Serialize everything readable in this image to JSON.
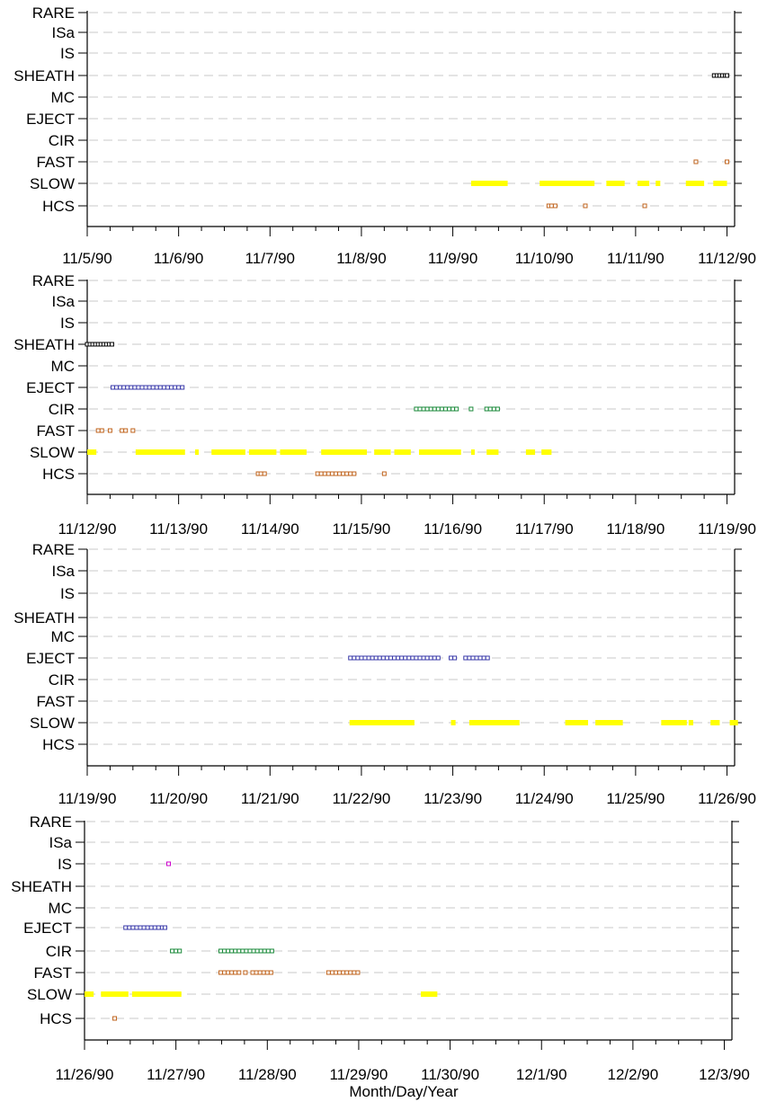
{
  "figure": {
    "xlabel": "Month/Day/Year",
    "categories": [
      "RARE",
      "ISa",
      "IS",
      "SHEATH",
      "MC",
      "EJECT",
      "CIR",
      "FAST",
      "SLOW",
      "HCS"
    ],
    "colors": {
      "SHEATH": "#000000",
      "EJECT": "#3a3aaa",
      "CIR": "#1a8a3a",
      "FAST": "#c0641e",
      "HCS": "#c0641e",
      "SLOW": "#ffff00",
      "IS": "#cc00cc",
      "grid": "#c8c8c8"
    }
  },
  "chart_data": [
    {
      "type": "scatter",
      "title": "",
      "xlabel": "",
      "ylabel": "",
      "xlim": [
        "1990-11-05",
        "1990-11-12 02:00"
      ],
      "tick_labels": [
        "11/5/90",
        "11/6/90",
        "11/7/90",
        "11/8/90",
        "11/9/90",
        "11/10/90",
        "11/11/90",
        "11/12/90"
      ],
      "series": [
        {
          "category": "SLOW",
          "kind": "bar",
          "intervals": [
            [
              4.2,
              4.6
            ],
            [
              4.95,
              5.55
            ],
            [
              5.68,
              5.88
            ],
            [
              6.02,
              6.15
            ],
            [
              6.22,
              6.27
            ],
            [
              6.55,
              6.75
            ],
            [
              6.85,
              7.0
            ]
          ]
        },
        {
          "category": "HCS",
          "kind": "markers",
          "points": [
            5.05,
            5.08,
            5.12,
            5.45,
            6.1
          ]
        },
        {
          "category": "FAST",
          "kind": "markers",
          "points": [
            6.66,
            7.0
          ]
        },
        {
          "category": "SHEATH",
          "kind": "markers",
          "points": [
            6.86,
            6.89,
            6.92,
            6.95,
            6.98,
            7.0
          ]
        }
      ]
    },
    {
      "type": "scatter",
      "title": "",
      "xlabel": "",
      "ylabel": "",
      "xlim": [
        "1990-11-12",
        "1990-11-19 02:00"
      ],
      "tick_labels": [
        "11/12/90",
        "11/13/90",
        "11/14/90",
        "11/15/90",
        "11/16/90",
        "11/17/90",
        "11/18/90",
        "11/19/90"
      ],
      "series": [
        {
          "category": "SHEATH",
          "kind": "markers",
          "points": [
            0.0,
            0.03,
            0.06,
            0.09,
            0.12,
            0.15,
            0.18,
            0.21,
            0.24,
            0.27
          ]
        },
        {
          "category": "EJECT",
          "kind": "markers",
          "points": [
            0.28,
            0.32,
            0.36,
            0.4,
            0.44,
            0.48,
            0.52,
            0.56,
            0.6,
            0.64,
            0.68,
            0.72,
            0.76,
            0.8,
            0.84,
            0.88,
            0.92,
            0.96,
            1.0,
            1.04
          ]
        },
        {
          "category": "CIR",
          "kind": "markers",
          "points": [
            3.6,
            3.64,
            3.68,
            3.72,
            3.76,
            3.8,
            3.84,
            3.88,
            3.92,
            3.96,
            4.0,
            4.04,
            4.2,
            4.37,
            4.41,
            4.45,
            4.49
          ]
        },
        {
          "category": "FAST",
          "kind": "markers",
          "points": [
            0.12,
            0.16,
            0.25,
            0.38,
            0.42,
            0.5
          ]
        },
        {
          "category": "SLOW",
          "kind": "bar",
          "intervals": [
            [
              0.0,
              0.1
            ],
            [
              0.53,
              1.07
            ],
            [
              1.18,
              1.22
            ],
            [
              1.36,
              1.73
            ],
            [
              1.77,
              2.07
            ],
            [
              2.11,
              2.4
            ],
            [
              2.56,
              3.06
            ],
            [
              3.14,
              3.32
            ],
            [
              3.36,
              3.54
            ],
            [
              3.63,
              4.09
            ],
            [
              4.2,
              4.24
            ],
            [
              4.37,
              4.5
            ],
            [
              4.8,
              4.9
            ],
            [
              4.97,
              5.08
            ]
          ]
        },
        {
          "category": "HCS",
          "kind": "markers",
          "points": [
            1.87,
            1.9,
            1.94,
            2.52,
            2.56,
            2.6,
            2.64,
            2.68,
            2.72,
            2.76,
            2.8,
            2.84,
            2.88,
            2.92,
            3.25
          ]
        }
      ]
    },
    {
      "type": "scatter",
      "title": "",
      "xlabel": "",
      "ylabel": "",
      "xlim": [
        "1990-11-19",
        "1990-11-26 02:00"
      ],
      "tick_labels": [
        "11/19/90",
        "11/20/90",
        "11/21/90",
        "11/22/90",
        "11/23/90",
        "11/24/90",
        "11/25/90",
        "11/26/90"
      ],
      "series": [
        {
          "category": "EJECT",
          "kind": "markers",
          "points": [
            2.88,
            2.92,
            2.96,
            3.0,
            3.04,
            3.08,
            3.12,
            3.16,
            3.2,
            3.24,
            3.28,
            3.32,
            3.36,
            3.4,
            3.44,
            3.48,
            3.52,
            3.56,
            3.6,
            3.64,
            3.68,
            3.72,
            3.76,
            3.8,
            3.84,
            3.98,
            4.02,
            4.14,
            4.18,
            4.22,
            4.26,
            4.3,
            4.34,
            4.38
          ]
        },
        {
          "category": "SLOW",
          "kind": "bar",
          "intervals": [
            [
              2.87,
              3.58
            ],
            [
              3.98,
              4.03
            ],
            [
              4.18,
              4.73
            ],
            [
              5.23,
              5.48
            ],
            [
              5.56,
              5.86
            ],
            [
              6.28,
              6.56
            ],
            [
              6.58,
              6.63
            ],
            [
              6.82,
              6.92
            ],
            [
              7.03,
              7.12
            ]
          ]
        }
      ]
    },
    {
      "type": "scatter",
      "title": "",
      "xlabel": "Month/Day/Year",
      "ylabel": "",
      "xlim": [
        "1990-11-26",
        "1990-12-03 02:00"
      ],
      "tick_labels": [
        "11/26/90",
        "11/27/90",
        "11/28/90",
        "11/29/90",
        "11/30/90",
        "12/1/90",
        "12/2/90",
        "12/3/90"
      ],
      "series": [
        {
          "category": "IS",
          "kind": "markers",
          "points": [
            0.92
          ]
        },
        {
          "category": "EJECT",
          "kind": "markers",
          "points": [
            0.45,
            0.49,
            0.53,
            0.57,
            0.61,
            0.65,
            0.69,
            0.73,
            0.77,
            0.81,
            0.85,
            0.88
          ]
        },
        {
          "category": "CIR",
          "kind": "markers",
          "points": [
            0.96,
            1.0,
            1.04,
            1.49,
            1.53,
            1.57,
            1.61,
            1.65,
            1.69,
            1.73,
            1.77,
            1.81,
            1.85,
            1.89,
            1.93,
            1.97,
            2.01,
            2.05
          ]
        },
        {
          "category": "FAST",
          "kind": "markers",
          "points": [
            1.49,
            1.53,
            1.57,
            1.61,
            1.65,
            1.69,
            1.76,
            1.84,
            1.88,
            1.92,
            1.96,
            2.0,
            2.04,
            2.67,
            2.71,
            2.75,
            2.79,
            2.83,
            2.87,
            2.91,
            2.95,
            2.99
          ]
        },
        {
          "category": "SLOW",
          "kind": "bar",
          "intervals": [
            [
              0.0,
              0.1
            ],
            [
              0.18,
              0.48
            ],
            [
              0.52,
              1.06
            ],
            [
              3.68,
              3.86
            ]
          ]
        },
        {
          "category": "HCS",
          "kind": "markers",
          "points": [
            0.33
          ]
        }
      ]
    }
  ]
}
